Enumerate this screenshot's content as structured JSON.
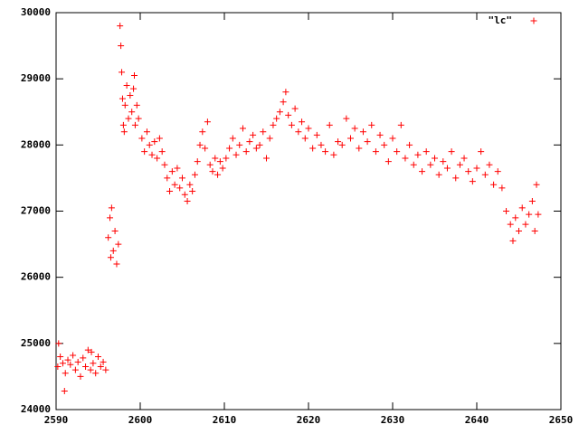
{
  "chart_data": {
    "type": "scatter",
    "x": [
      2590.2,
      2590.5,
      2590.8,
      2591.1,
      2591.4,
      2591.7,
      2592.0,
      2592.3,
      2592.6,
      2592.9,
      2593.2,
      2593.5,
      2593.8,
      2594.1,
      2594.4,
      2594.7,
      2595.0,
      2595.3,
      2595.6,
      2595.9,
      2591.0,
      2590.3,
      2594.2,
      2596.2,
      2596.4,
      2596.6,
      2596.8,
      2597.0,
      2597.2,
      2597.4,
      2596.5,
      2597.6,
      2597.7,
      2597.8,
      2597.9,
      2598.0,
      2598.2,
      2598.4,
      2598.6,
      2598.8,
      2599.0,
      2599.2,
      2599.4,
      2599.6,
      2599.8,
      2598.1,
      2599.3,
      2600.2,
      2600.5,
      2600.8,
      2601.1,
      2601.4,
      2601.7,
      2602.0,
      2602.3,
      2602.6,
      2602.9,
      2603.2,
      2603.5,
      2603.8,
      2604.1,
      2604.4,
      2604.7,
      2605.0,
      2605.3,
      2605.6,
      2605.9,
      2606.2,
      2606.5,
      2606.8,
      2607.1,
      2607.4,
      2607.7,
      2608.0,
      2608.3,
      2608.6,
      2608.9,
      2609.2,
      2609.5,
      2609.8,
      2610.2,
      2610.6,
      2611.0,
      2611.4,
      2611.8,
      2612.2,
      2612.6,
      2613.0,
      2613.4,
      2613.8,
      2614.2,
      2614.6,
      2615.0,
      2615.4,
      2615.8,
      2616.2,
      2616.6,
      2617.0,
      2617.3,
      2617.6,
      2618.0,
      2618.4,
      2618.8,
      2619.2,
      2619.6,
      2620.0,
      2620.5,
      2621.0,
      2621.5,
      2622.0,
      2622.5,
      2623.0,
      2623.5,
      2624.0,
      2624.5,
      2625.0,
      2625.5,
      2626.0,
      2626.5,
      2627.0,
      2627.5,
      2628.0,
      2628.5,
      2629.0,
      2629.5,
      2630.0,
      2630.5,
      2631.0,
      2631.5,
      2632.0,
      2632.5,
      2633.0,
      2633.5,
      2634.0,
      2634.5,
      2635.0,
      2635.5,
      2636.0,
      2636.5,
      2637.0,
      2637.5,
      2638.0,
      2638.5,
      2639.0,
      2639.5,
      2640.0,
      2640.5,
      2641.0,
      2641.5,
      2642.0,
      2642.5,
      2643.0,
      2643.5,
      2644.0,
      2644.3,
      2644.6,
      2645.0,
      2645.4,
      2645.8,
      2646.2,
      2646.6,
      2646.9,
      2647.1,
      2647.3
    ],
    "series": [
      {
        "name": "\"lc\"",
        "color": "#ff0000",
        "values": [
          24650,
          24800,
          24700,
          24550,
          24750,
          24680,
          24820,
          24600,
          24720,
          24500,
          24780,
          24650,
          24900,
          24600,
          24700,
          24550,
          24800,
          24650,
          24720,
          24600,
          24280,
          25000,
          24870,
          26600,
          26900,
          27050,
          26400,
          26700,
          26200,
          26500,
          26300,
          29800,
          29500,
          29100,
          28700,
          28300,
          28600,
          28900,
          28400,
          28750,
          28500,
          28850,
          28300,
          28600,
          28400,
          28200,
          29050,
          28100,
          27900,
          28200,
          28000,
          27850,
          28050,
          27800,
          28100,
          27900,
          27700,
          27500,
          27300,
          27600,
          27400,
          27650,
          27350,
          27500,
          27250,
          27150,
          27400,
          27300,
          27550,
          27750,
          28000,
          28200,
          27950,
          28350,
          27700,
          27600,
          27800,
          27550,
          27750,
          27650,
          27800,
          27950,
          28100,
          27850,
          28000,
          28250,
          27900,
          28050,
          28150,
          27950,
          28000,
          28200,
          27800,
          28100,
          28300,
          28400,
          28500,
          28650,
          28800,
          28450,
          28300,
          28550,
          28200,
          28350,
          28100,
          28250,
          27950,
          28150,
          28000,
          27900,
          28300,
          27850,
          28050,
          28000,
          28400,
          28100,
          28250,
          27950,
          28200,
          28050,
          28300,
          27900,
          28150,
          28000,
          27750,
          28100,
          27900,
          28300,
          27800,
          28000,
          27700,
          27850,
          27600,
          27900,
          27700,
          27800,
          27550,
          27750,
          27650,
          27900,
          27500,
          27700,
          27800,
          27600,
          27450,
          27650,
          27900,
          27550,
          27700,
          27400,
          27600,
          27350,
          27000,
          26800,
          26550,
          26900,
          26700,
          27050,
          26800,
          26950,
          27150,
          26700,
          27400,
          26950
        ]
      }
    ],
    "xlim": [
      2590,
      2650
    ],
    "ylim": [
      24000,
      30000
    ],
    "xticks": [
      2590,
      2600,
      2610,
      2620,
      2630,
      2640,
      2650
    ],
    "yticks": [
      24000,
      25000,
      26000,
      27000,
      28000,
      29000,
      30000
    ],
    "legend": "top-right"
  }
}
